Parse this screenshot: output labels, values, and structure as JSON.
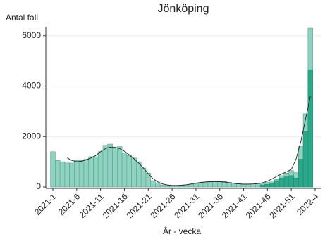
{
  "chart_data": {
    "type": "bar",
    "title": "Jönköping",
    "y_label": "Antal fall",
    "x_label": "År - vecka",
    "categories": [
      "2021-1",
      null,
      null,
      null,
      null,
      "2021-6",
      null,
      null,
      null,
      null,
      "2021-11",
      null,
      null,
      null,
      null,
      "2021-16",
      null,
      null,
      null,
      null,
      "2021-21",
      null,
      null,
      null,
      null,
      "2021-26",
      null,
      null,
      null,
      null,
      "2021-31",
      null,
      null,
      null,
      null,
      "2021-36",
      null,
      null,
      null,
      null,
      "2021-41",
      null,
      null,
      null,
      null,
      "2021-46",
      null,
      null,
      null,
      null,
      "2021-51",
      null,
      null,
      null,
      null,
      "2022-4"
    ],
    "series": [
      {
        "color": "#8ed3c0",
        "values": [
          1400,
          1050,
          1000,
          950,
          950,
          1050,
          1050,
          1100,
          1200,
          1200,
          1400,
          1650,
          1700,
          1550,
          1600,
          1350,
          1250,
          1150,
          1000,
          750,
          550,
          250,
          150,
          80,
          60,
          50,
          40,
          60,
          80,
          100,
          130,
          170,
          180,
          200,
          220,
          230,
          220,
          180,
          150,
          120,
          100,
          120,
          120,
          130,
          150,
          180,
          200,
          300,
          450,
          550,
          650,
          600,
          1600,
          2900,
          6300,
          null
        ]
      },
      {
        "color": "#2ba88a",
        "values": [
          null,
          null,
          null,
          null,
          null,
          null,
          null,
          null,
          null,
          null,
          null,
          null,
          null,
          null,
          null,
          null,
          null,
          null,
          null,
          null,
          null,
          null,
          null,
          null,
          null,
          null,
          null,
          null,
          null,
          null,
          null,
          null,
          null,
          null,
          null,
          null,
          null,
          null,
          null,
          null,
          null,
          null,
          null,
          null,
          80,
          100,
          150,
          250,
          350,
          400,
          450,
          350,
          1100,
          2200,
          4650,
          null
        ]
      },
      {
        "type": "line",
        "color": "#222222",
        "values": [
          null,
          null,
          null,
          1150,
          1050,
          1000,
          1020,
          1080,
          1150,
          1250,
          1400,
          1520,
          1580,
          1580,
          1520,
          1420,
          1280,
          1120,
          950,
          750,
          520,
          330,
          200,
          120,
          80,
          60,
          60,
          70,
          90,
          120,
          150,
          180,
          200,
          210,
          215,
          210,
          195,
          170,
          145,
          125,
          115,
          115,
          120,
          135,
          170,
          230,
          320,
          430,
          520,
          600,
          700,
          1100,
          1800,
          2700,
          3600,
          null
        ]
      }
    ],
    "ylim": [
      0,
      6300
    ],
    "yticks": [
      0,
      2000,
      4000,
      6000
    ],
    "grid": true
  }
}
